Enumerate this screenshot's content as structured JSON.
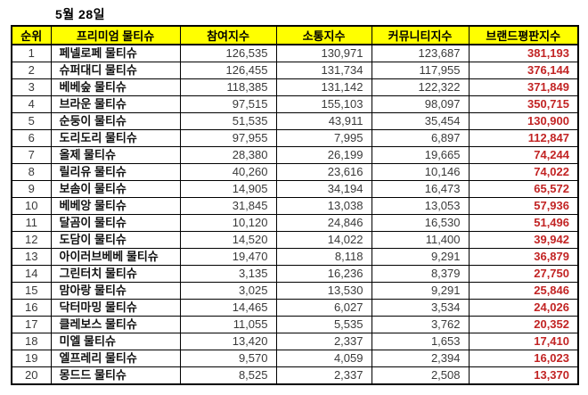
{
  "colors": {
    "header_bg": "#FFFF00",
    "border": "#000000",
    "number_text": "#3a3a3a",
    "brand_text": "#111111",
    "reputation_text": "#C22424",
    "page_bg": "#FFFFFF"
  },
  "chart_data": {
    "type": "table",
    "title": "5월 28일",
    "columns": [
      "순위",
      "프리미엄 물티슈",
      "참여지수",
      "소통지수",
      "커뮤니티지수",
      "브랜드평판지수"
    ],
    "rows": [
      {
        "rank": "1",
        "brand": "페넬로페 물티슈",
        "participation": "126,535",
        "communication": "130,971",
        "community": "123,687",
        "reputation": "381,193"
      },
      {
        "rank": "2",
        "brand": "슈퍼대디 물티슈",
        "participation": "126,455",
        "communication": "131,734",
        "community": "117,955",
        "reputation": "376,144"
      },
      {
        "rank": "3",
        "brand": "베베숲 물티슈",
        "participation": "118,385",
        "communication": "131,142",
        "community": "122,322",
        "reputation": "371,849"
      },
      {
        "rank": "4",
        "brand": "브라운 물티슈",
        "participation": "97,515",
        "communication": "155,103",
        "community": "98,097",
        "reputation": "350,715"
      },
      {
        "rank": "5",
        "brand": "순둥이 물티슈",
        "participation": "51,535",
        "communication": "43,911",
        "community": "35,454",
        "reputation": "130,900"
      },
      {
        "rank": "6",
        "brand": "도리도리 물티슈",
        "participation": "97,955",
        "communication": "7,995",
        "community": "6,897",
        "reputation": "112,847"
      },
      {
        "rank": "7",
        "brand": "올제 물티슈",
        "participation": "28,380",
        "communication": "26,199",
        "community": "19,665",
        "reputation": "74,244"
      },
      {
        "rank": "8",
        "brand": "릴리유 물티슈",
        "participation": "40,260",
        "communication": "23,616",
        "community": "10,146",
        "reputation": "74,022"
      },
      {
        "rank": "9",
        "brand": "보솜이 물티슈",
        "participation": "14,905",
        "communication": "34,194",
        "community": "16,473",
        "reputation": "65,572"
      },
      {
        "rank": "10",
        "brand": "베베앙 물티슈",
        "participation": "31,845",
        "communication": "13,038",
        "community": "13,053",
        "reputation": "57,936"
      },
      {
        "rank": "11",
        "brand": "달곰이 물티슈",
        "participation": "10,120",
        "communication": "24,846",
        "community": "16,530",
        "reputation": "51,496"
      },
      {
        "rank": "12",
        "brand": "도담이 물티슈",
        "participation": "14,520",
        "communication": "14,022",
        "community": "11,400",
        "reputation": "39,942"
      },
      {
        "rank": "13",
        "brand": "아이러브베베 물티슈",
        "participation": "19,470",
        "communication": "8,118",
        "community": "9,291",
        "reputation": "36,879"
      },
      {
        "rank": "14",
        "brand": "그린터치 물티슈",
        "participation": "3,135",
        "communication": "16,236",
        "community": "8,379",
        "reputation": "27,750"
      },
      {
        "rank": "15",
        "brand": "맘아랑 물티슈",
        "participation": "3,025",
        "communication": "13,530",
        "community": "9,291",
        "reputation": "25,846"
      },
      {
        "rank": "16",
        "brand": "닥터마밍 물티슈",
        "participation": "14,465",
        "communication": "6,027",
        "community": "3,534",
        "reputation": "24,026"
      },
      {
        "rank": "17",
        "brand": "클레보스 물티슈",
        "participation": "11,055",
        "communication": "5,535",
        "community": "3,762",
        "reputation": "20,352"
      },
      {
        "rank": "18",
        "brand": "미엘 물티슈",
        "participation": "13,420",
        "communication": "2,337",
        "community": "1,653",
        "reputation": "17,410"
      },
      {
        "rank": "19",
        "brand": "엘프레리 물티슈",
        "participation": "9,570",
        "communication": "4,059",
        "community": "2,394",
        "reputation": "16,023"
      },
      {
        "rank": "20",
        "brand": "몽드드 물티슈",
        "participation": "8,525",
        "communication": "2,337",
        "community": "2,508",
        "reputation": "13,370"
      }
    ]
  }
}
